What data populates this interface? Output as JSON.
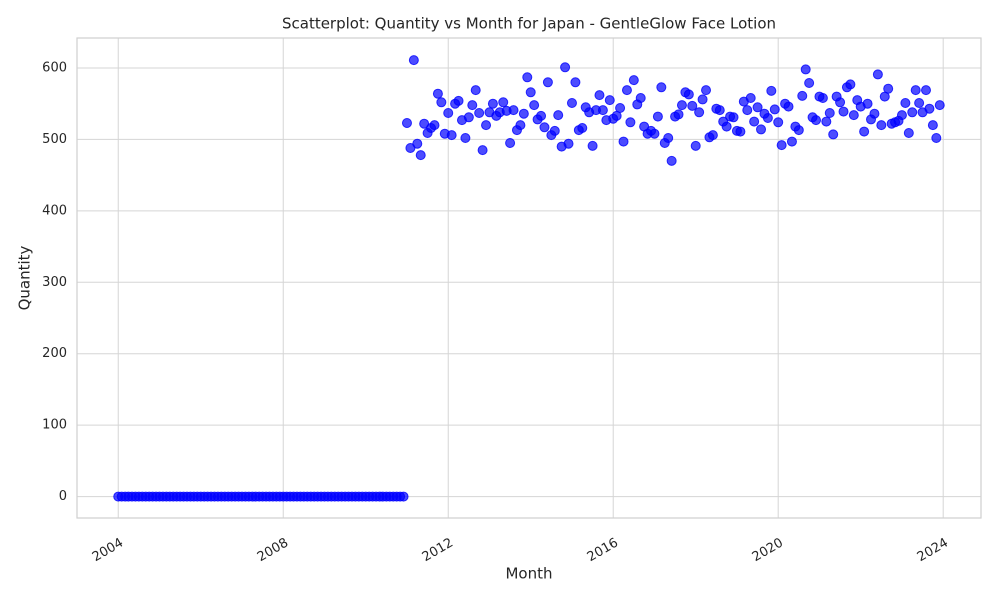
{
  "chart_data": {
    "type": "scatter",
    "title": "Scatterplot: Quantity vs Month for Japan - GentleGlow Face Lotion",
    "x_label": "Month",
    "y_label": "Quantity",
    "color": "#0000ff",
    "grid": true,
    "xlim": [
      "2003-01",
      "2024-12"
    ],
    "xticks": [
      "2004",
      "2008",
      "2012",
      "2016",
      "2020",
      "2024"
    ],
    "ylim": [
      -30,
      642
    ],
    "yticks": [
      0,
      100,
      200,
      300,
      400,
      500,
      600
    ],
    "x": [
      "2004-01",
      "2004-02",
      "2004-03",
      "2004-04",
      "2004-05",
      "2004-06",
      "2004-07",
      "2004-08",
      "2004-09",
      "2004-10",
      "2004-11",
      "2004-12",
      "2005-01",
      "2005-02",
      "2005-03",
      "2005-04",
      "2005-05",
      "2005-06",
      "2005-07",
      "2005-08",
      "2005-09",
      "2005-10",
      "2005-11",
      "2005-12",
      "2006-01",
      "2006-02",
      "2006-03",
      "2006-04",
      "2006-05",
      "2006-06",
      "2006-07",
      "2006-08",
      "2006-09",
      "2006-10",
      "2006-11",
      "2006-12",
      "2007-01",
      "2007-02",
      "2007-03",
      "2007-04",
      "2007-05",
      "2007-06",
      "2007-07",
      "2007-08",
      "2007-09",
      "2007-10",
      "2007-11",
      "2007-12",
      "2008-01",
      "2008-02",
      "2008-03",
      "2008-04",
      "2008-05",
      "2008-06",
      "2008-07",
      "2008-08",
      "2008-09",
      "2008-10",
      "2008-11",
      "2008-12",
      "2009-01",
      "2009-02",
      "2009-03",
      "2009-04",
      "2009-05",
      "2009-06",
      "2009-07",
      "2009-08",
      "2009-09",
      "2009-10",
      "2009-11",
      "2009-12",
      "2010-01",
      "2010-02",
      "2010-03",
      "2010-04",
      "2010-05",
      "2010-06",
      "2010-07",
      "2010-08",
      "2010-09",
      "2010-10",
      "2010-11",
      "2010-12",
      "2011-01",
      "2011-02",
      "2011-03",
      "2011-04",
      "2011-05",
      "2011-06",
      "2011-07",
      "2011-08",
      "2011-09",
      "2011-10",
      "2011-11",
      "2011-12",
      "2012-01",
      "2012-02",
      "2012-03",
      "2012-04",
      "2012-05",
      "2012-06",
      "2012-07",
      "2012-08",
      "2012-09",
      "2012-10",
      "2012-11",
      "2012-12",
      "2013-01",
      "2013-02",
      "2013-03",
      "2013-04",
      "2013-05",
      "2013-06",
      "2013-07",
      "2013-08",
      "2013-09",
      "2013-10",
      "2013-11",
      "2013-12",
      "2014-01",
      "2014-02",
      "2014-03",
      "2014-04",
      "2014-05",
      "2014-06",
      "2014-07",
      "2014-08",
      "2014-09",
      "2014-10",
      "2014-11",
      "2014-12",
      "2015-01",
      "2015-02",
      "2015-03",
      "2015-04",
      "2015-05",
      "2015-06",
      "2015-07",
      "2015-08",
      "2015-09",
      "2015-10",
      "2015-11",
      "2015-12",
      "2016-01",
      "2016-02",
      "2016-03",
      "2016-04",
      "2016-05",
      "2016-06",
      "2016-07",
      "2016-08",
      "2016-09",
      "2016-10",
      "2016-11",
      "2016-12",
      "2017-01",
      "2017-02",
      "2017-03",
      "2017-04",
      "2017-05",
      "2017-06",
      "2017-07",
      "2017-08",
      "2017-09",
      "2017-10",
      "2017-11",
      "2017-12",
      "2018-01",
      "2018-02",
      "2018-03",
      "2018-04",
      "2018-05",
      "2018-06",
      "2018-07",
      "2018-08",
      "2018-09",
      "2018-10",
      "2018-11",
      "2018-12",
      "2019-01",
      "2019-02",
      "2019-03",
      "2019-04",
      "2019-05",
      "2019-06",
      "2019-07",
      "2019-08",
      "2019-09",
      "2019-10",
      "2019-11",
      "2019-12",
      "2020-01",
      "2020-02",
      "2020-03",
      "2020-04",
      "2020-05",
      "2020-06",
      "2020-07",
      "2020-08",
      "2020-09",
      "2020-10",
      "2020-11",
      "2020-12",
      "2021-01",
      "2021-02",
      "2021-03",
      "2021-04",
      "2021-05",
      "2021-06",
      "2021-07",
      "2021-08",
      "2021-09",
      "2021-10",
      "2021-11",
      "2021-12",
      "2022-01",
      "2022-02",
      "2022-03",
      "2022-04",
      "2022-05",
      "2022-06",
      "2022-07",
      "2022-08",
      "2022-09",
      "2022-10",
      "2022-11",
      "2022-12",
      "2023-01",
      "2023-02",
      "2023-03",
      "2023-04",
      "2023-05",
      "2023-06",
      "2023-07",
      "2023-08",
      "2023-09",
      "2023-10",
      "2023-11",
      "2023-12"
    ],
    "values": [
      0,
      0,
      0,
      0,
      0,
      0,
      0,
      0,
      0,
      0,
      0,
      0,
      0,
      0,
      0,
      0,
      0,
      0,
      0,
      0,
      0,
      0,
      0,
      0,
      0,
      0,
      0,
      0,
      0,
      0,
      0,
      0,
      0,
      0,
      0,
      0,
      0,
      0,
      0,
      0,
      0,
      0,
      0,
      0,
      0,
      0,
      0,
      0,
      0,
      0,
      0,
      0,
      0,
      0,
      0,
      0,
      0,
      0,
      0,
      0,
      0,
      0,
      0,
      0,
      0,
      0,
      0,
      0,
      0,
      0,
      0,
      0,
      0,
      0,
      0,
      0,
      0,
      0,
      0,
      0,
      0,
      0,
      0,
      0,
      523,
      488,
      611,
      494,
      478,
      522,
      509,
      516,
      520,
      564,
      552,
      508,
      537,
      506,
      550,
      554,
      527,
      502,
      531,
      548,
      569,
      537,
      485,
      520,
      538,
      550,
      533,
      538,
      552,
      540,
      495,
      541,
      513,
      520,
      536,
      587,
      566,
      548,
      528,
      533,
      517,
      580,
      506,
      512,
      534,
      490,
      601,
      494,
      551,
      580,
      513,
      516,
      545,
      538,
      491,
      541,
      562,
      541,
      527,
      555,
      529,
      533,
      544,
      497,
      569,
      524,
      583,
      549,
      558,
      518,
      508,
      512,
      508,
      532,
      573,
      495,
      502,
      470,
      532,
      535,
      548,
      566,
      563,
      547,
      491,
      538,
      556,
      569,
      503,
      506,
      543,
      541,
      525,
      518,
      532,
      531,
      512,
      511,
      553,
      541,
      558,
      525,
      545,
      514,
      536,
      530,
      568,
      542,
      524,
      492,
      550,
      546,
      497,
      518,
      513,
      561,
      598,
      579,
      531,
      527,
      560,
      558,
      525,
      537,
      507,
      560,
      552,
      539,
      573,
      577,
      534,
      555,
      546,
      511,
      550,
      528,
      536,
      591,
      520,
      560,
      571,
      522,
      524,
      526,
      534,
      551,
      509,
      538,
      569,
      551,
      538,
      569,
      543,
      520,
      502,
      548
    ]
  }
}
